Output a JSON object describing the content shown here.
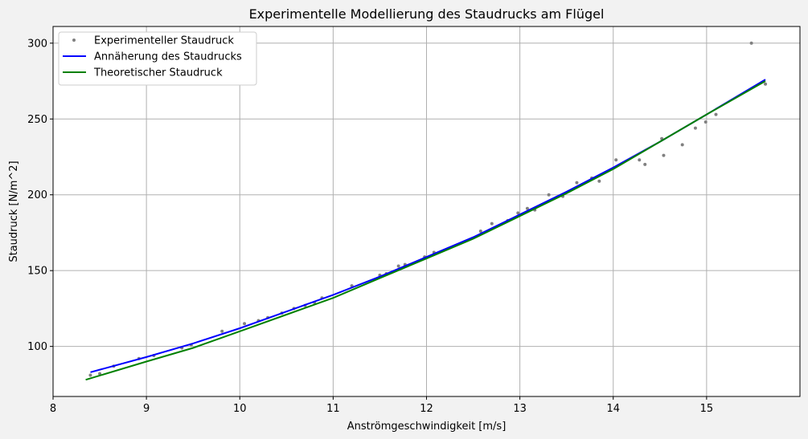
{
  "chart_data": {
    "type": "scatter",
    "title": "Experimentelle Modellierung des Staudrucks am Flügel",
    "xlabel": "Anströmgeschwindigkeit [m/s]",
    "ylabel": "Staudruck [N/m^2]",
    "xlim": [
      8.0,
      16.0
    ],
    "ylim": [
      67,
      311
    ],
    "xticks": [
      8,
      9,
      10,
      11,
      12,
      13,
      14,
      15
    ],
    "yticks": [
      100,
      150,
      200,
      250,
      300
    ],
    "grid": true,
    "legend_position": "top-left",
    "series": [
      {
        "name": "Experimenteller Staudruck",
        "kind": "scatter",
        "color": "#808080",
        "x": [
          8.4,
          8.5,
          8.65,
          8.92,
          9.08,
          9.38,
          9.48,
          9.81,
          10.05,
          10.2,
          10.3,
          10.45,
          10.58,
          10.7,
          10.8,
          10.88,
          11.2,
          11.5,
          11.57,
          11.7,
          11.77,
          11.98,
          12.08,
          12.58,
          12.7,
          12.87,
          12.98,
          13.08,
          13.16,
          13.31,
          13.46,
          13.61,
          13.77,
          13.85,
          14.03,
          14.28,
          14.34,
          14.52,
          14.54,
          14.74,
          14.88,
          14.99,
          15.1,
          15.48,
          15.63
        ],
        "y": [
          81,
          82,
          87,
          92,
          94,
          99,
          101,
          110,
          115,
          117,
          119,
          122,
          125,
          127,
          129,
          132,
          140,
          147,
          148,
          153,
          154,
          159,
          162,
          176,
          181,
          183,
          188,
          191,
          190,
          200,
          199,
          208,
          211,
          209,
          223,
          223,
          220,
          237,
          226,
          233,
          244,
          248,
          253,
          300,
          273
        ]
      },
      {
        "name": "Annäherung des Staudrucks",
        "kind": "line",
        "color": "#0000ff",
        "x": [
          8.4,
          9.0,
          9.5,
          10.0,
          10.5,
          11.0,
          11.5,
          12.0,
          12.5,
          13.0,
          13.5,
          14.0,
          14.5,
          15.0,
          15.63
        ],
        "y": [
          83,
          93,
          102,
          112,
          123,
          134,
          146,
          159,
          172,
          187,
          202,
          218,
          235,
          253,
          276
        ]
      },
      {
        "name": "Theoretischer Staudruck",
        "kind": "line",
        "color": "#008000",
        "x": [
          8.35,
          9.0,
          9.5,
          10.0,
          10.5,
          11.0,
          11.5,
          12.0,
          12.5,
          13.0,
          13.5,
          14.0,
          14.5,
          15.0,
          15.63
        ],
        "y": [
          78,
          90,
          99,
          110,
          121,
          132,
          145,
          158,
          171,
          186,
          201,
          217,
          235,
          253,
          275
        ]
      }
    ]
  }
}
